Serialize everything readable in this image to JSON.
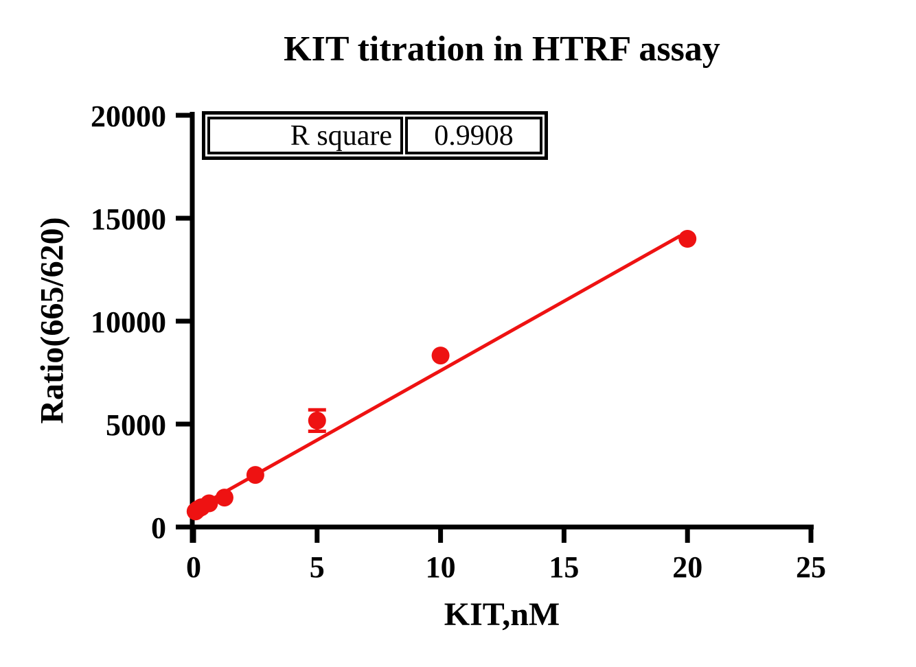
{
  "page": {
    "background_color": "#ffffff",
    "text_color": "#000000"
  },
  "chart_data": {
    "type": "scatter",
    "title": "KIT titration in HTRF assay",
    "xlabel": "KIT,nM",
    "ylabel": "Ratio(665/620)",
    "xlim": [
      0,
      25
    ],
    "ylim": [
      0,
      20000
    ],
    "x_ticks": [
      0,
      5,
      10,
      15,
      20,
      25
    ],
    "y_ticks": [
      0,
      5000,
      10000,
      15000,
      20000
    ],
    "grid": false,
    "legend": "none",
    "axis_color": "#000000",
    "marker_color": "#ee1212",
    "line_color": "#ee1212",
    "series": [
      {
        "name": "KIT titration",
        "marker": "filled-circle",
        "points": [
          {
            "x": 0.078,
            "y": 760
          },
          {
            "x": 0.156,
            "y": 850
          },
          {
            "x": 0.3125,
            "y": 960
          },
          {
            "x": 0.625,
            "y": 1150
          },
          {
            "x": 1.25,
            "y": 1430
          },
          {
            "x": 2.5,
            "y": 2530
          },
          {
            "x": 5,
            "y": 5170,
            "yerr": 520
          },
          {
            "x": 10,
            "y": 8330
          },
          {
            "x": 20,
            "y": 14000
          }
        ]
      }
    ],
    "trendline": {
      "x1": 0,
      "y1": 850,
      "x2": 19.7,
      "y2": 14140
    },
    "stats_table": {
      "label": "R square",
      "value": "0.9908"
    }
  }
}
